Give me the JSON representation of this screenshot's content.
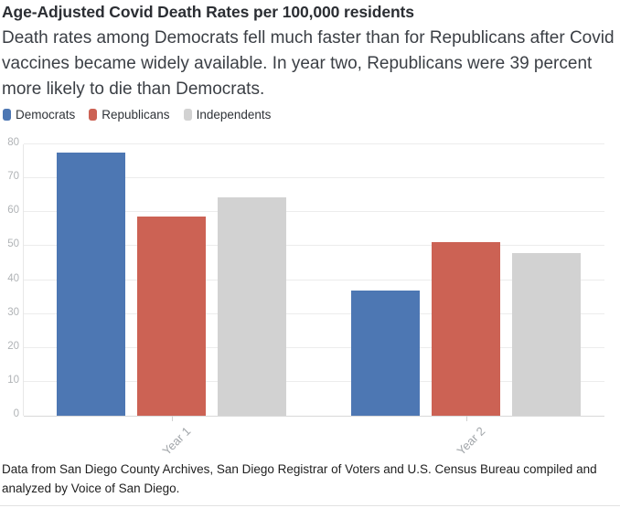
{
  "header": {
    "title": "Age-Adjusted Covid Death Rates per 100,000 residents",
    "subtitle": "Death rates among Democrats fell much faster than for Republicans after Covid vaccines became widely available. In year two, Republicans were 39 percent more likely to die than Democrats."
  },
  "legend": {
    "items": [
      {
        "label": "Democrats",
        "color": "#4d77b3"
      },
      {
        "label": "Republicans",
        "color": "#cc6254"
      },
      {
        "label": "Independents",
        "color": "#d2d2d2"
      }
    ]
  },
  "chart_data": {
    "type": "bar",
    "categories": [
      "Year 1",
      "Year 2"
    ],
    "series": [
      {
        "name": "Democrats",
        "color": "#4d77b3",
        "values": [
          77.6,
          36.9
        ]
      },
      {
        "name": "Republicans",
        "color": "#cc6254",
        "values": [
          58.8,
          51.3
        ]
      },
      {
        "name": "Independents",
        "color": "#d2d2d2",
        "values": [
          64.3,
          48.0
        ]
      }
    ],
    "title": "Age-Adjusted Covid Death Rates per 100,000 residents",
    "xlabel": "",
    "ylabel": "",
    "ylim": [
      0,
      80
    ],
    "yticks": [
      0,
      10,
      20,
      30,
      40,
      50,
      60,
      70,
      80
    ],
    "grid": true,
    "legend_position": "top-left"
  },
  "footer": {
    "source": "Data from San Diego County Archives, San Diego Registrar of Voters and U.S. Census Bureau compiled and analyzed by Voice of San Diego."
  },
  "colors": {
    "democrats": "#4d77b3",
    "republicans": "#cc6254",
    "independents": "#d2d2d2",
    "gridline": "#ececec"
  }
}
